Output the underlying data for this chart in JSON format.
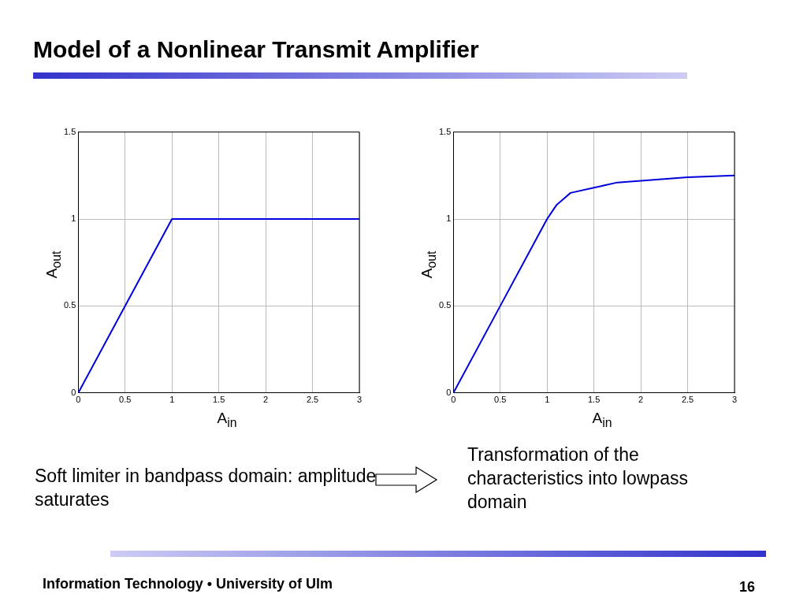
{
  "chart_data": [
    {
      "type": "line",
      "title": "Model of a Nonlinear Transmit Amplifier",
      "xlabel": "A$_{in}$",
      "ylabel": "A$_{out}$",
      "xlim": [
        0,
        3
      ],
      "ylim": [
        0,
        1.5
      ],
      "xticks": [
        0,
        0.5,
        1,
        1.5,
        2,
        2.5,
        3
      ],
      "yticks": [
        0,
        0.5,
        1,
        1.5
      ],
      "grid": true,
      "legend": false,
      "series": [
        {
          "color": "#0000dd",
          "x": [
            0,
            1,
            3
          ],
          "values": [
            0,
            1,
            1
          ]
        }
      ],
      "annotations": [
        "Soft limiter in bandpass domain: amplitude saturates"
      ]
    },
    {
      "type": "line",
      "xlabel": "A$_{in}$",
      "ylabel": "A$_{out}$",
      "xlim": [
        0,
        3
      ],
      "ylim": [
        0,
        1.5
      ],
      "xticks": [
        0,
        0.5,
        1,
        1.5,
        2,
        2.5,
        3
      ],
      "yticks": [
        0,
        0.5,
        1,
        1.5
      ],
      "grid": true,
      "legend": false,
      "series": [
        {
          "color": "#0000dd",
          "x": [
            0,
            0.5,
            0.9,
            1,
            1.05,
            1.1,
            1.25,
            1.5,
            1.75,
            2,
            2.5,
            3
          ],
          "values": [
            0,
            0.5,
            0.9,
            1,
            1.04,
            1.08,
            1.15,
            1.18,
            1.21,
            1.22,
            1.24,
            1.25
          ]
        }
      ],
      "annotations": [
        "Transformation of the characteristics into lowpass domain",
        "Information Technology • University of Ulm",
        "16"
      ]
    }
  ]
}
